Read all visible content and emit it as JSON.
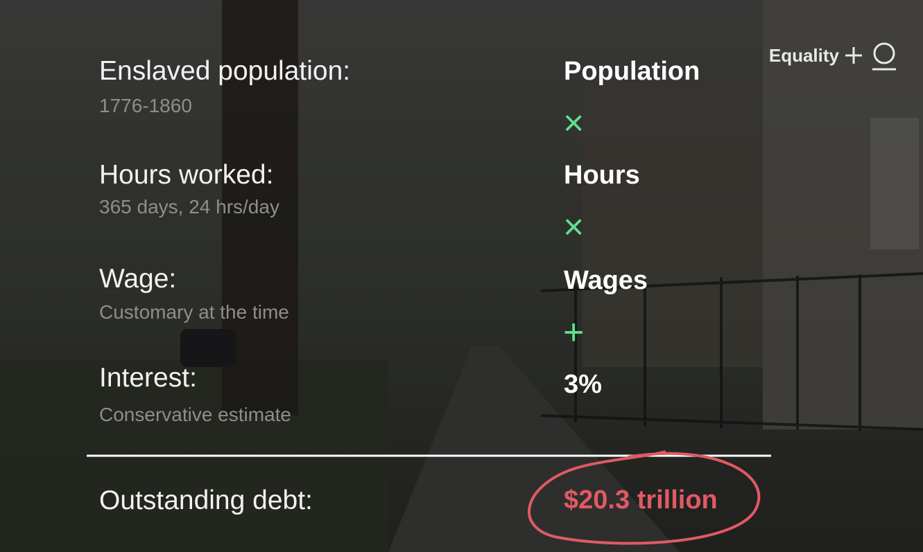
{
  "brand": "Equality",
  "rows": [
    {
      "label": "Enslaved population:",
      "note": "1776-1860"
    },
    {
      "label": "Hours worked:",
      "note": "365 days, 24 hrs/day"
    },
    {
      "label": "Wage:",
      "note": "Customary at the time"
    },
    {
      "label": "Interest:",
      "note": "Conservative estimate"
    }
  ],
  "terms": [
    "Population",
    "Hours",
    "Wages",
    "3%"
  ],
  "operators": [
    "×",
    "×",
    "+"
  ],
  "total": {
    "label": "Outstanding debt:",
    "value": "$20.3 trillion"
  }
}
